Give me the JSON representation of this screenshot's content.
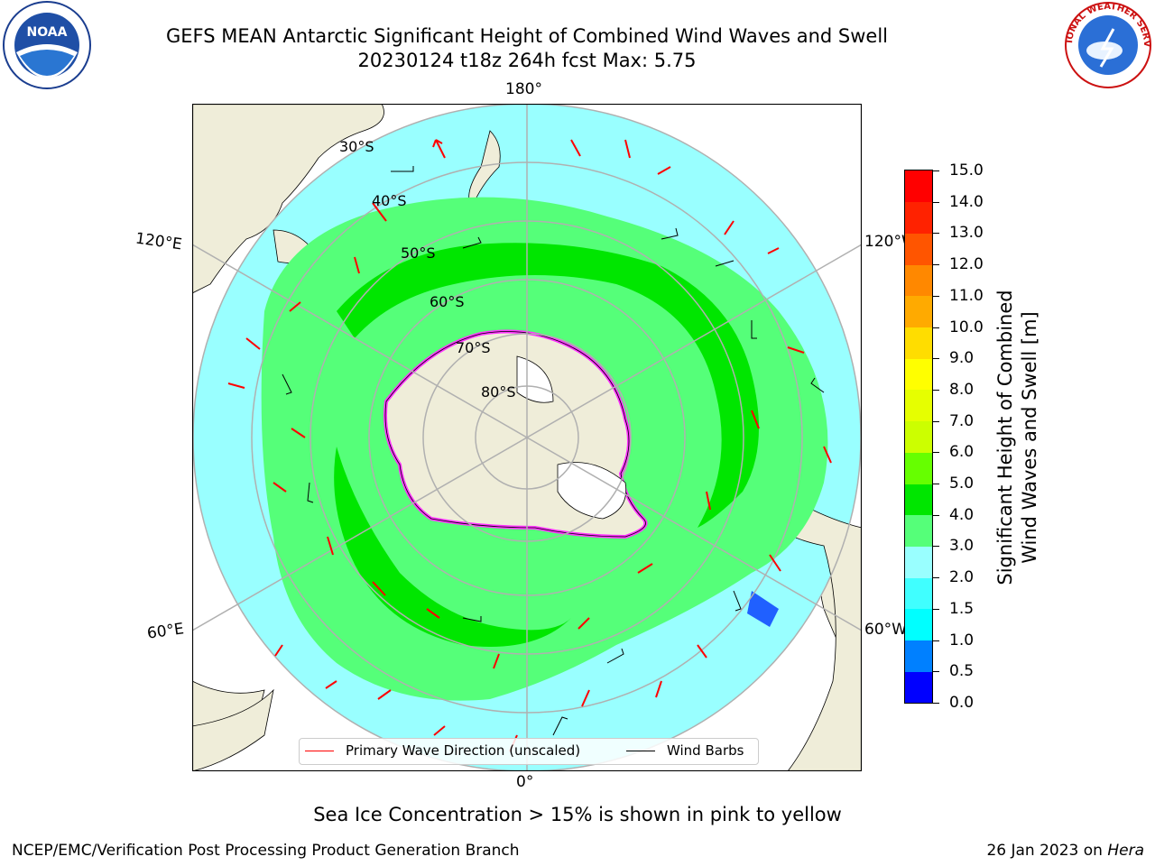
{
  "title": {
    "line1": "GEFS MEAN Antarctic Significant Height of Combined Wind Waves and Swell",
    "line2": "20230124 t18z 264h fcst   Max: 5.75"
  },
  "map": {
    "projection": "south-polar-stereographic",
    "lon_labels": {
      "top": "180°",
      "bottom": "0°",
      "left_upper": "120°E",
      "left_lower": "60°E",
      "right_upper": "120°W",
      "right_lower": "60°W"
    },
    "lat_labels": [
      "30°S",
      "40°S",
      "50°S",
      "60°S",
      "70°S",
      "80°S"
    ],
    "colors": {
      "ocean_bg": "#99ffff",
      "land": "#efedd9",
      "band_3_4": "#55ff79",
      "band_4_5": "#00e600",
      "sea_ice": "#ffffff",
      "ice_edge": "#ff33ff",
      "gridline": "#b0b0b0",
      "arrows": "#ff0000",
      "barbs": "#000000"
    }
  },
  "legend": {
    "wave_label": "Primary Wave Direction (unscaled)",
    "barb_label": "Wind Barbs",
    "wave_color": "#ff0000",
    "barb_color": "#000000"
  },
  "colorbar": {
    "title_line1": "Significant Height of Combined",
    "title_line2": "Wind Waves and Swell [m]",
    "ticks": [
      "0.0",
      "0.5",
      "1.0",
      "1.5",
      "2.0",
      "3.0",
      "4.0",
      "5.0",
      "6.0",
      "7.0",
      "8.0",
      "9.0",
      "10.0",
      "11.0",
      "12.0",
      "13.0",
      "14.0",
      "15.0"
    ],
    "colors": [
      "#0000ff",
      "#0080ff",
      "#00ffff",
      "#40ffff",
      "#99ffff",
      "#55ff79",
      "#00e600",
      "#66ff00",
      "#ccff00",
      "#e6ff00",
      "#ffff00",
      "#ffdd00",
      "#ffaa00",
      "#ff8800",
      "#ff5500",
      "#ff2200",
      "#ff0000"
    ]
  },
  "caption": "Sea Ice Concentration > 15% is shown in pink to yellow",
  "footer": {
    "left": "NCEP/EMC/Verification Post Processing Product Generation Branch",
    "right_date": "26 Jan 2023 on ",
    "right_host": "Hera"
  },
  "logos": {
    "left": "NOAA",
    "right": "NATIONAL WEATHER SERVICE"
  }
}
